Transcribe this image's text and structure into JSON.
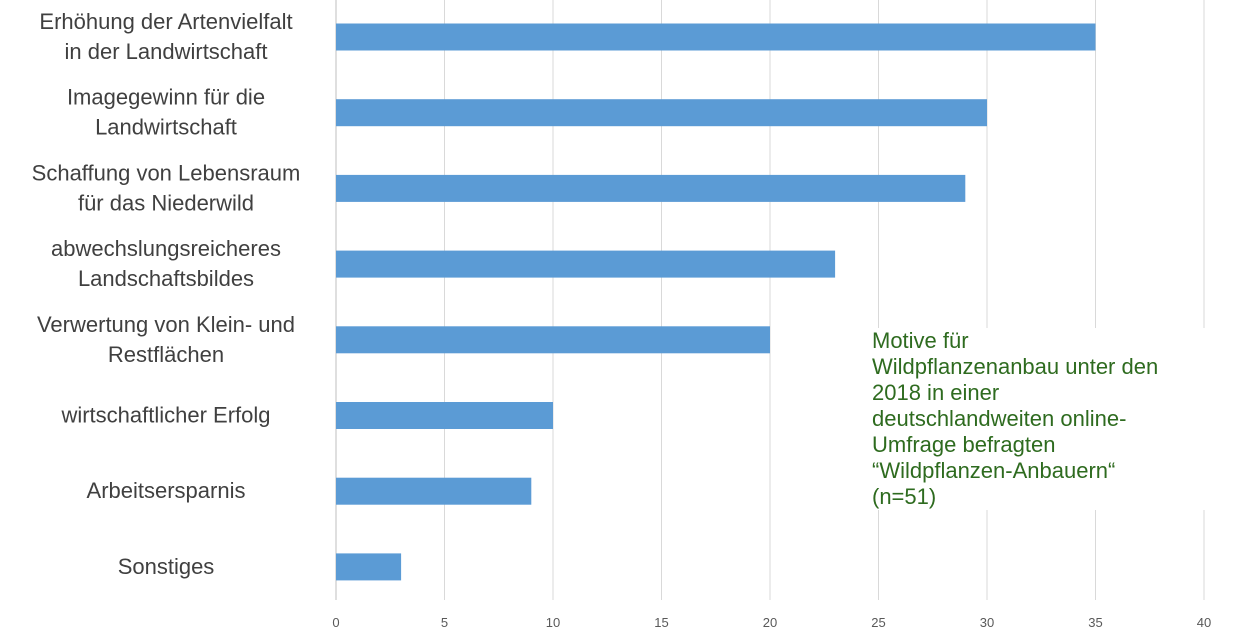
{
  "chart_data": {
    "type": "bar",
    "orientation": "horizontal",
    "categories": [
      "Erhöhung der Artenvielfalt\nin der Landwirtschaft",
      "Imagegewinn für die\nLandwirtschaft",
      "Schaffung von Lebensraum\nfür das Niederwild",
      "abwechslungsreicheres\nLandschaftsbildes",
      "Verwertung von Klein- und\nRestflächen",
      "wirtschaftlicher Erfolg",
      "Arbeitsersparnis",
      "Sonstiges"
    ],
    "values": [
      35,
      30,
      29,
      23,
      20,
      10,
      9,
      3
    ],
    "xlim": [
      0,
      40
    ],
    "xticks": [
      "0",
      "5",
      "10",
      "15",
      "20",
      "25",
      "30",
      "35",
      "40"
    ],
    "grid": "vertical",
    "bar_color": "#5b9bd5",
    "annotation": "Motive für\nWildpflanzenanbau unter den\n2018 in einer\ndeutschlandweiten  online-\nUmfrage befragten\n“Wildpflanzen-Anbauern“\n(n=51)",
    "annotation_color": "#2e6b1f"
  }
}
